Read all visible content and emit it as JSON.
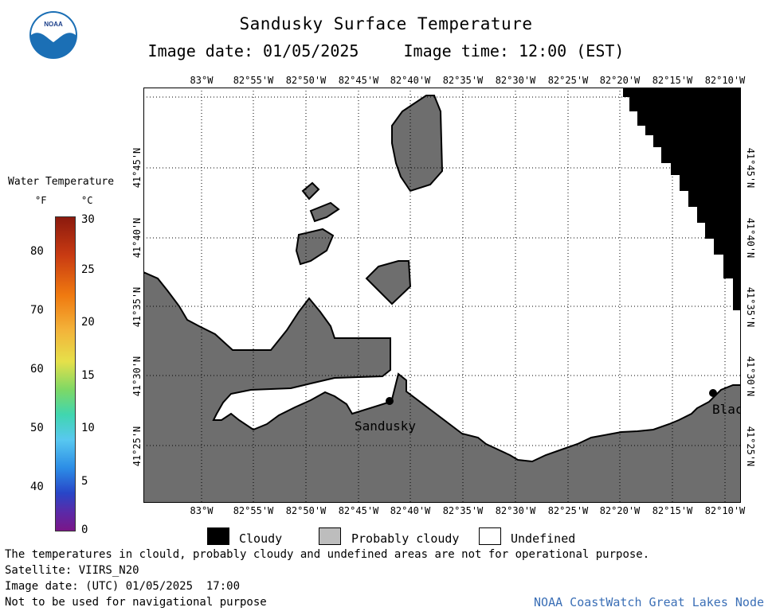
{
  "header": {
    "title": "Sandusky Surface Temperature",
    "image_date": "Image date: 01/05/2025",
    "image_time": "Image time: 12:00 (EST)"
  },
  "logo": {
    "text": "NOAA"
  },
  "map": {
    "lon_labels": [
      "83°W",
      "82°55'W",
      "82°50'W",
      "82°45'W",
      "82°40'W",
      "82°35'W",
      "82°30'W",
      "82°25'W",
      "82°20'W",
      "82°15'W",
      "82°10'W"
    ],
    "lat_labels": [
      "41°45'N",
      "41°40'N",
      "41°35'N",
      "41°30'N",
      "41°25'N"
    ],
    "place_labels": {
      "sandusky": "Sandusky",
      "blac": "Blac"
    },
    "colors": {
      "land": "#6e6e6e",
      "cloud": "#000000",
      "water": "#ffffff"
    }
  },
  "colorbar": {
    "title": "Water Temperature",
    "unit_f": "°F",
    "unit_c": "°C",
    "f_ticks": [
      "80",
      "70",
      "60",
      "50",
      "40"
    ],
    "c_ticks": [
      "30",
      "25",
      "20",
      "15",
      "10",
      "5",
      "0"
    ]
  },
  "key": {
    "cloudy": "Cloudy",
    "probably_cloudy": "Probably cloudy",
    "undefined": "Undefined"
  },
  "footer": {
    "note": "The temperatures in clould, probably cloudy and undefined areas are not for operational purpose.",
    "satellite": "Satellite: VIIRS_N20",
    "utc_date": "Image date: (UTC) 01/05/2025  17:00",
    "nav": "Not to be used for navigational purpose",
    "node": "NOAA CoastWatch Great Lakes Node"
  }
}
